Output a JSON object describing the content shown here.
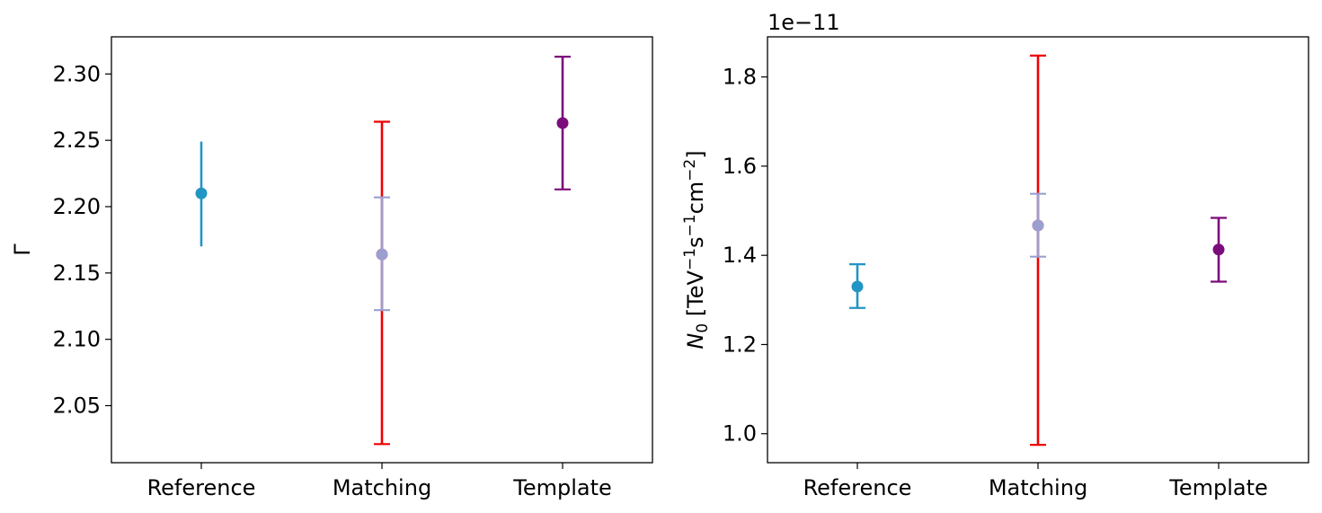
{
  "chart_data": [
    {
      "type": "scatter",
      "title": "",
      "xlabel": "",
      "ylabel": "Γ",
      "categories": [
        "Reference",
        "Matching",
        "Template"
      ],
      "ylim": [
        2.007,
        2.328
      ],
      "yticks": [
        "2.05",
        "2.10",
        "2.15",
        "2.20",
        "2.25",
        "2.30"
      ],
      "grid": false,
      "points": [
        {
          "category": "Reference",
          "value": 2.21,
          "err_low": 2.17,
          "err_high": 2.249,
          "color": "#2196c4",
          "caps": false
        },
        {
          "category": "Matching",
          "value": 2.164,
          "err_low": 2.021,
          "err_high": 2.264,
          "color": "#ee0000",
          "caps": true
        },
        {
          "category": "Matching",
          "value": 2.164,
          "err_low": 2.122,
          "err_high": 2.207,
          "color": "#9b9fcf",
          "caps": true
        },
        {
          "category": "Template",
          "value": 2.263,
          "err_low": 2.213,
          "err_high": 2.313,
          "color": "#7b0c7b",
          "caps": true
        }
      ]
    },
    {
      "type": "scatter",
      "title": "",
      "xlabel": "",
      "ylabel_main": "N",
      "ylabel_sub": "0",
      "ylabel_unit_pre": " [TeV",
      "ylabel_exp1": "−1",
      "ylabel_mid": "s",
      "ylabel_exp2": "−1",
      "ylabel_mid2": "cm",
      "ylabel_exp3": "−2",
      "ylabel_post": "]",
      "offset_text": "1e−11",
      "categories": [
        "Reference",
        "Matching",
        "Template"
      ],
      "ylim": [
        0.935,
        1.89
      ],
      "yticks": [
        "1.0",
        "1.2",
        "1.4",
        "1.6",
        "1.8"
      ],
      "grid": false,
      "points": [
        {
          "category": "Reference",
          "value": 1.33,
          "err_low": 1.282,
          "err_high": 1.38,
          "color": "#2196c4",
          "caps": true
        },
        {
          "category": "Matching",
          "value": 1.467,
          "err_low": 0.975,
          "err_high": 1.848,
          "color": "#ee0000",
          "caps": true
        },
        {
          "category": "Matching",
          "value": 1.467,
          "err_low": 1.397,
          "err_high": 1.538,
          "color": "#9b9fcf",
          "caps": true
        },
        {
          "category": "Template",
          "value": 1.413,
          "err_low": 1.341,
          "err_high": 1.484,
          "color": "#7b0c7b",
          "caps": true
        }
      ]
    }
  ]
}
